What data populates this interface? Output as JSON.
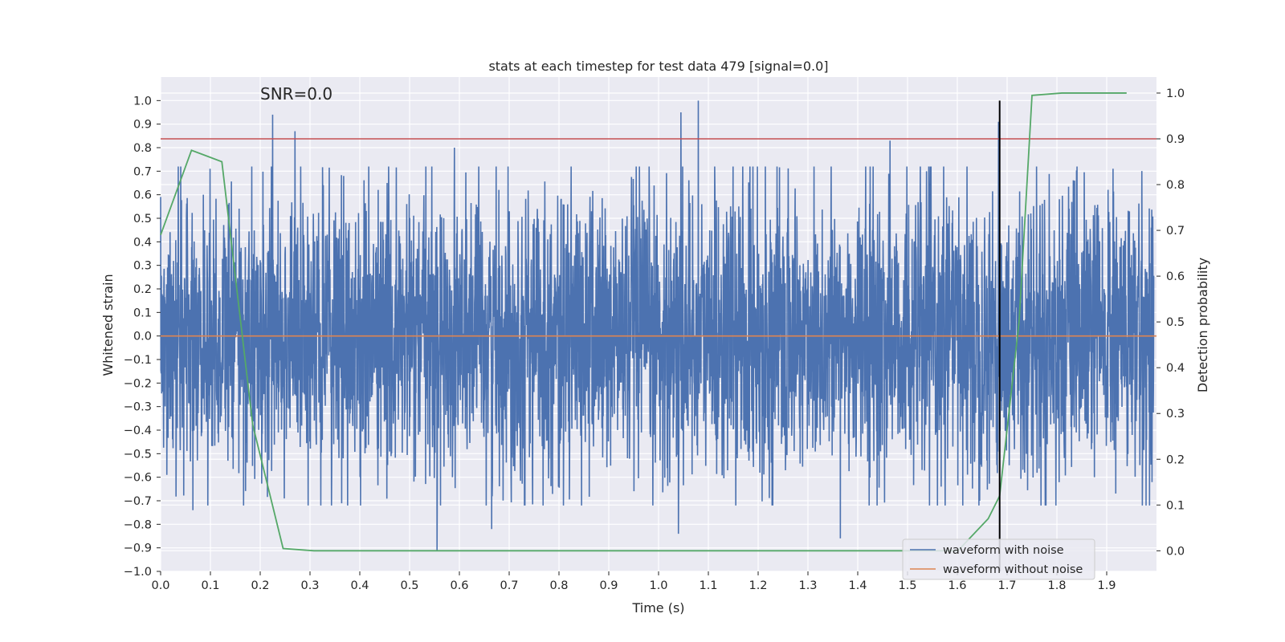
{
  "chart_data": {
    "type": "line",
    "title": "stats at each timestep for test data 479 [signal=0.0]",
    "xlabel": "Time (s)",
    "ylabel": "Whitened strain",
    "y2label": "Detection probability",
    "annotation": "SNR=0.0",
    "xlim": [
      0.0,
      2.0
    ],
    "ylim": [
      -1.0,
      1.1
    ],
    "y2lim": [
      -0.045,
      1.035
    ],
    "xticks": [
      "0.0",
      "0.1",
      "0.2",
      "0.3",
      "0.4",
      "0.5",
      "0.6",
      "0.7",
      "0.8",
      "0.9",
      "1.0",
      "1.1",
      "1.2",
      "1.3",
      "1.4",
      "1.5",
      "1.6",
      "1.7",
      "1.8",
      "1.9"
    ],
    "xtick_values": [
      0.0,
      0.1,
      0.2,
      0.3,
      0.4,
      0.5,
      0.6,
      0.7,
      0.8,
      0.9,
      1.0,
      1.1,
      1.2,
      1.3,
      1.4,
      1.5,
      1.6,
      1.7,
      1.8,
      1.9
    ],
    "yticks": [
      "−1.0",
      "−0.9",
      "−0.8",
      "−0.7",
      "−0.6",
      "−0.5",
      "−0.4",
      "−0.3",
      "−0.2",
      "−0.1",
      "0.0",
      "0.1",
      "0.2",
      "0.3",
      "0.4",
      "0.5",
      "0.6",
      "0.7",
      "0.8",
      "0.9",
      "1.0"
    ],
    "ytick_values": [
      -1.0,
      -0.9,
      -0.8,
      -0.7,
      -0.6,
      -0.5,
      -0.4,
      -0.3,
      -0.2,
      -0.1,
      0.0,
      0.1,
      0.2,
      0.3,
      0.4,
      0.5,
      0.6,
      0.7,
      0.8,
      0.9,
      1.0
    ],
    "y2ticks": [
      "0.0",
      "0.1",
      "0.2",
      "0.3",
      "0.4",
      "0.5",
      "0.6",
      "0.7",
      "0.8",
      "0.9",
      "1.0"
    ],
    "y2tick_values": [
      0.0,
      0.1,
      0.2,
      0.3,
      0.4,
      0.5,
      0.6,
      0.7,
      0.8,
      0.9,
      1.0
    ],
    "grid": true,
    "legend_position": "lower-right",
    "threshold_line": {
      "axis": "right",
      "value": 0.9,
      "color": "#c44e52"
    },
    "vertical_line": {
      "x": 1.685,
      "ymin": -1.0,
      "ymax": 1.0,
      "color": "#000000"
    },
    "series": [
      {
        "name": "waveform with noise",
        "axis": "left",
        "color": "#4c72b0",
        "kind": "noise",
        "amplitude_std": 0.3,
        "peaks": [
          [
            0.225,
            0.94
          ],
          [
            0.27,
            0.87
          ],
          [
            0.59,
            0.8
          ],
          [
            1.045,
            0.95
          ],
          [
            1.08,
            1.0
          ],
          [
            1.465,
            0.83
          ],
          [
            1.683,
            0.91
          ],
          [
            0.555,
            -0.91
          ],
          [
            0.065,
            -0.74
          ],
          [
            0.665,
            -0.82
          ],
          [
            1.04,
            -0.84
          ],
          [
            1.365,
            -0.86
          ],
          [
            1.645,
            -0.7
          ]
        ]
      },
      {
        "name": "waveform without noise",
        "axis": "left",
        "color": "#dd8452",
        "x": [
          0.0,
          2.0
        ],
        "y": [
          0.0,
          0.0
        ]
      },
      {
        "name": "Detection probability",
        "axis": "right",
        "color": "#55a868",
        "x": [
          0.0,
          0.062,
          0.123,
          0.185,
          0.246,
          0.308,
          0.37,
          0.431,
          0.493,
          0.554,
          0.616,
          0.677,
          0.739,
          0.8,
          0.862,
          0.924,
          0.985,
          1.047,
          1.108,
          1.17,
          1.231,
          1.293,
          1.355,
          1.416,
          1.478,
          1.539,
          1.601,
          1.662,
          1.685,
          1.724,
          1.75,
          1.81,
          1.94
        ],
        "y": [
          0.69,
          0.875,
          0.85,
          0.275,
          0.005,
          0.0,
          0.0,
          0.0,
          0.0,
          0.0,
          0.0,
          0.0,
          0.0,
          0.0,
          0.0,
          0.0,
          0.0,
          0.0,
          0.0,
          0.0,
          0.0,
          0.0,
          0.0,
          0.0,
          0.0,
          0.0,
          0.0,
          0.07,
          0.12,
          0.5,
          0.995,
          1.0,
          1.0
        ]
      }
    ]
  }
}
